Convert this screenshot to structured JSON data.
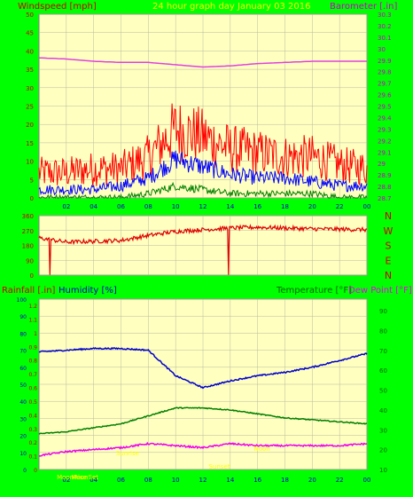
{
  "header": {
    "left_title": "Windspeed [mph]",
    "center_title": "24 hour graph day   January 03 2016",
    "right_title": "Barometer [.in]"
  },
  "colors": {
    "frame_bg": "#00ff00",
    "plot_bg": "#ffffc0",
    "grid": "#b8b8a0",
    "wind_gust": "#ff0000",
    "wind_avg": "#0000ff",
    "wind_low": "#008000",
    "barometer": "#e040e0",
    "direction": "#e00000",
    "humidity": "#0000cc",
    "temperature": "#008000",
    "dewpoint": "#ee00ee",
    "rain_label": "#cc0000",
    "left_axis_text": "#cc0000",
    "right_axis_text": "#cc00cc",
    "humidity_axis_text": "#0000cc",
    "temp_axis_text": "#006600",
    "annotation": "#ffff00"
  },
  "panels": {
    "wind": {
      "y_left_ticks": [
        "0",
        "5",
        "10",
        "15",
        "20",
        "25",
        "30",
        "35",
        "40",
        "45",
        "50"
      ],
      "y_right_ticks": [
        "28.7",
        "28.8",
        "28.9",
        "29",
        "29.1",
        "29.2",
        "29.3",
        "29.4",
        "29.5",
        "29.6",
        "29.7",
        "29.8",
        "29.9",
        "30",
        "30.1",
        "30.2",
        "30.3"
      ],
      "x_ticks": [
        "02",
        "04",
        "06",
        "08",
        "10",
        "12",
        "14",
        "16",
        "18",
        "20",
        "22",
        "00"
      ]
    },
    "direction": {
      "y_left_ticks": [
        "0",
        "90",
        "180",
        "270",
        "360"
      ],
      "y_right_labels": [
        "N",
        "W",
        "S",
        "E",
        "N"
      ]
    },
    "climate": {
      "left_title": "Rainfall [.in]",
      "humidity_title": "Humidity [%]",
      "temp_title": "Temperature [°F]",
      "dew_title": "Dew Point [°F]",
      "y_rain_ticks": [
        "0",
        "0.1",
        "0.2",
        "0.3",
        "0.4",
        "0.5",
        "0.6",
        "0.7",
        "0.8",
        "0.9",
        "1",
        "1.1",
        "1.2"
      ],
      "y_humidity_ticks": [
        "0",
        "10",
        "20",
        "30",
        "40",
        "50",
        "60",
        "70",
        "80",
        "90",
        "100"
      ],
      "y_temp_ticks": [
        "10",
        "20",
        "30",
        "40",
        "50",
        "60",
        "70",
        "80",
        "90"
      ],
      "x_ticks": [
        "02",
        "04",
        "06",
        "08",
        "10",
        "12",
        "14",
        "16",
        "18",
        "20",
        "22",
        "00"
      ],
      "annotations": [
        "MoonRise",
        "MoonSet",
        "Sunrise",
        "Sunset",
        "Noon"
      ]
    }
  },
  "chart_data": [
    {
      "type": "line",
      "title": "24 hour graph day   January 03 2016",
      "xlabel": "",
      "x": [
        "00",
        "02",
        "04",
        "06",
        "08",
        "10",
        "12",
        "14",
        "16",
        "18",
        "20",
        "22",
        "00"
      ],
      "ylabel": "Windspeed [mph]",
      "ylim": [
        0,
        50
      ],
      "y2label": "Barometer [.in]",
      "y2lim": [
        28.7,
        30.3
      ],
      "series": [
        {
          "name": "Wind gust",
          "axis": "left",
          "values": [
            6,
            6,
            7,
            7,
            10,
            17,
            15,
            12,
            11,
            10,
            10,
            8,
            7
          ]
        },
        {
          "name": "Wind avg",
          "axis": "left",
          "values": [
            2,
            2,
            2,
            3,
            5,
            10,
            8,
            6,
            5,
            5,
            4,
            3,
            3
          ]
        },
        {
          "name": "Wind low",
          "axis": "left",
          "values": [
            0,
            0,
            0,
            0,
            1,
            3,
            2,
            1,
            1,
            1,
            1,
            0,
            0
          ]
        },
        {
          "name": "Barometer",
          "axis": "right",
          "values": [
            29.92,
            29.91,
            29.89,
            29.88,
            29.88,
            29.86,
            29.84,
            29.85,
            29.87,
            29.88,
            29.89,
            29.89,
            29.89
          ]
        }
      ]
    },
    {
      "type": "line",
      "xlabel": "",
      "ylabel": "",
      "ylim": [
        0,
        360
      ],
      "series": [
        {
          "name": "Wind direction",
          "values": [
            225,
            200,
            205,
            210,
            240,
            265,
            275,
            285,
            290,
            285,
            280,
            278,
            275
          ]
        }
      ]
    },
    {
      "type": "line",
      "x": [
        "00",
        "02",
        "04",
        "06",
        "08",
        "10",
        "12",
        "14",
        "16",
        "18",
        "20",
        "22",
        "00"
      ],
      "ylabel": "Rainfall [.in]",
      "ylim": [
        0,
        1.2
      ],
      "series": [
        {
          "name": "Humidity [%]",
          "axis": "humidity",
          "ylim": [
            0,
            100
          ],
          "values": [
            69,
            70,
            71,
            71,
            70,
            55,
            48,
            52,
            55,
            57,
            60,
            64,
            68
          ]
        },
        {
          "name": "Temperature [°F]",
          "axis": "temp",
          "ylim": [
            10,
            90
          ],
          "values": [
            28,
            29,
            31,
            33,
            37,
            41,
            41,
            40,
            38,
            36,
            35,
            34,
            33
          ]
        },
        {
          "name": "Dew Point [°F]",
          "axis": "temp",
          "ylim": [
            10,
            90
          ],
          "values": [
            17,
            19,
            20,
            21,
            23,
            22,
            21,
            23,
            22,
            22,
            22,
            22,
            23
          ]
        },
        {
          "name": "Rainfall [.in]",
          "axis": "rain",
          "ylim": [
            0,
            1.2
          ],
          "values": [
            0,
            0,
            0,
            0,
            0,
            0,
            0,
            0,
            0,
            0,
            0,
            0,
            0
          ]
        }
      ]
    }
  ]
}
